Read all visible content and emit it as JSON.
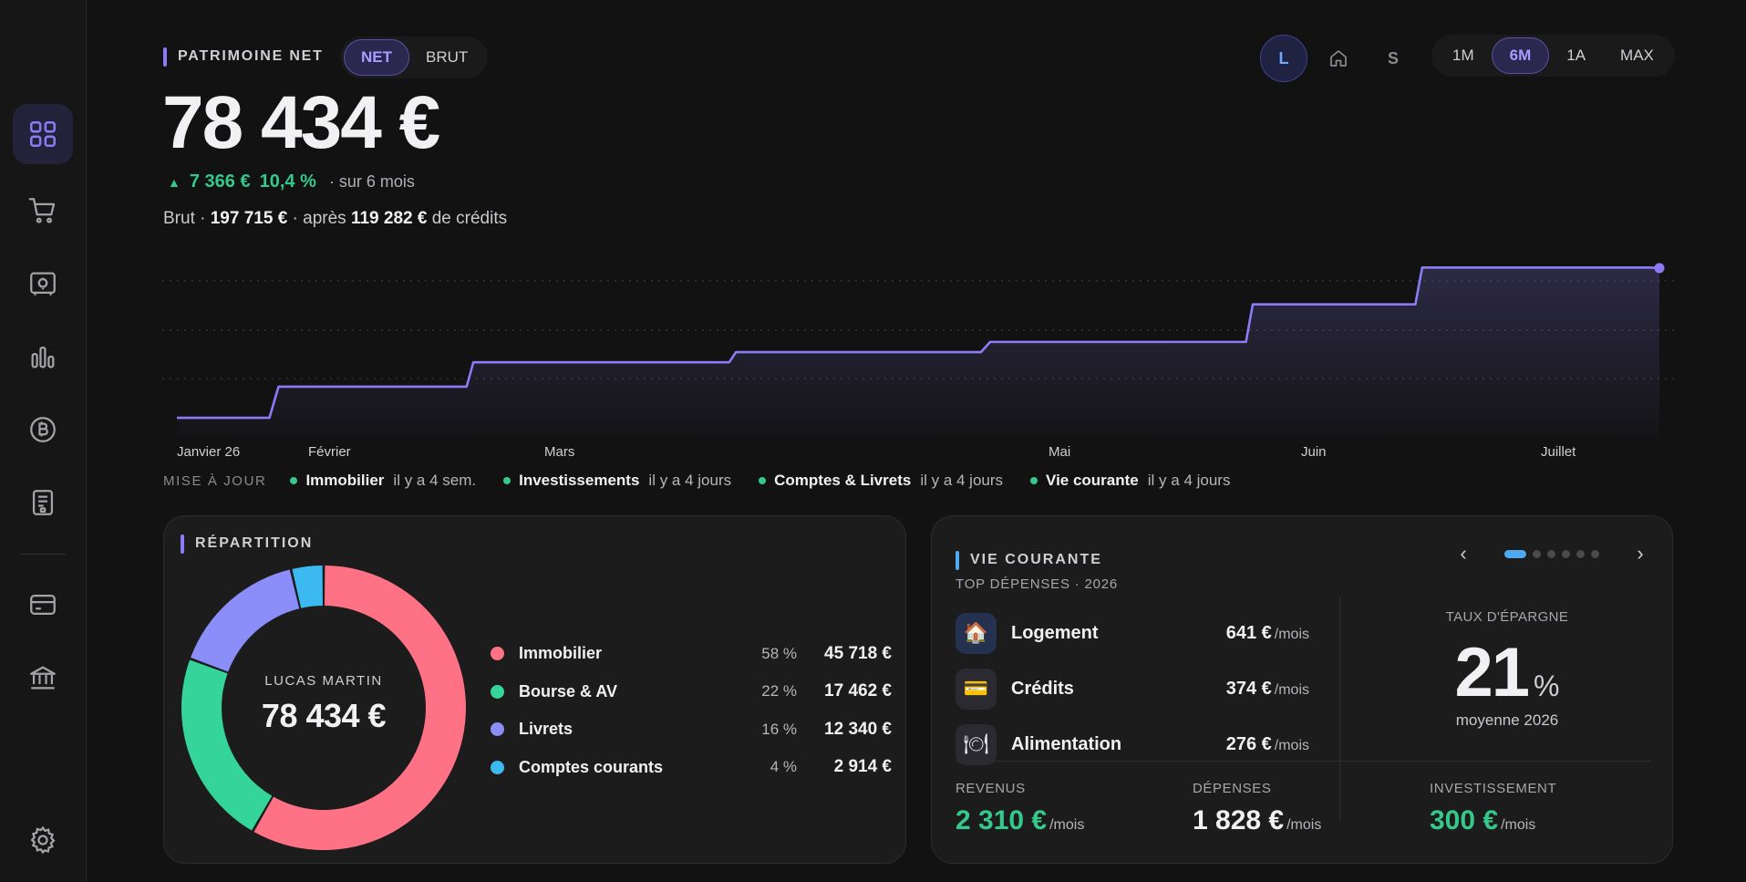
{
  "header": {
    "title": "PATRIMOINE NET",
    "mode_options": [
      "NET",
      "BRUT"
    ],
    "mode_selected": "NET",
    "view_buttons": {
      "l": "L",
      "s": "S"
    },
    "period_options": [
      "1M",
      "6M",
      "1A",
      "MAX"
    ],
    "period_selected": "6M"
  },
  "summary": {
    "value": "78 434 €",
    "delta_abs": "7 366 €",
    "delta_pct": "10,4 %",
    "delta_period": "· sur 6 mois",
    "brut_prefix": "Brut ·",
    "brut_value": "197 715 €",
    "apres_text": "· après",
    "credits_value": "119 282 €",
    "credits_suffix": "de crédits"
  },
  "chart_data": {
    "type": "line",
    "x": [
      "2026-01-26",
      "2026-02-07",
      "2026-02-28",
      "2026-03-02",
      "2026-03-31",
      "2026-04-02",
      "2026-04-26",
      "2026-05-02",
      "2026-05-31",
      "2026-06-02",
      "2026-06-20",
      "2026-06-22",
      "2026-07-12",
      "2026-07-20"
    ],
    "values": [
      71068,
      72600,
      72600,
      73800,
      73800,
      74300,
      74300,
      74800,
      74800,
      76650,
      76650,
      78460,
      78460,
      78434
    ],
    "x_tick_labels": [
      "Janvier 26",
      "Février",
      "Mars",
      "Mai",
      "Juin",
      "Juillet"
    ],
    "line_color": "#8b7cf6",
    "grid": "horizontal-dotted"
  },
  "updates": {
    "label": "MISE À JOUR",
    "items": [
      {
        "name": "Immobilier",
        "time": "il y a 4 sem."
      },
      {
        "name": "Investissements",
        "time": "il y a 4 jours"
      },
      {
        "name": "Comptes & Livrets",
        "time": "il y a 4 jours"
      },
      {
        "name": "Vie courante",
        "time": "il y a 4 jours"
      }
    ],
    "dot_color": "#34c98b"
  },
  "repartition": {
    "title": "RÉPARTITION",
    "owner": "LUCAS MARTIN",
    "total": "78 434 €",
    "items": [
      {
        "name": "Immobilier",
        "pct": "58 %",
        "value": "45 718 €",
        "color": "#ff7185",
        "share": 0.583
      },
      {
        "name": "Bourse & AV",
        "pct": "22 %",
        "value": "17 462 €",
        "color": "#35d49a",
        "share": 0.223
      },
      {
        "name": "Livrets",
        "pct": "16 %",
        "value": "12 340 €",
        "color": "#8b8df8",
        "share": 0.157
      },
      {
        "name": "Comptes courants",
        "pct": "4 %",
        "value": "2 914 €",
        "color": "#3cb9f0",
        "share": 0.037
      }
    ]
  },
  "vie_courante": {
    "title": "VIE COURANTE",
    "subtitle": "TOP DÉPENSES · 2026",
    "pager": {
      "count": 6,
      "active": 0
    },
    "expenses": [
      {
        "icon": "house-icon",
        "glyph": "🏠",
        "name": "Logement",
        "value": "641 €",
        "unit": "/mois"
      },
      {
        "icon": "credit-card-icon",
        "glyph": "💳",
        "name": "Crédits",
        "value": "374 €",
        "unit": "/mois"
      },
      {
        "icon": "plate-icon",
        "glyph": "🍽",
        "name": "Alimentation",
        "value": "276 €",
        "unit": "/mois"
      }
    ],
    "savings": {
      "label": "TAUX D'ÉPARGNE",
      "value": "21",
      "unit": "%",
      "sub": "moyenne 2026"
    },
    "totals": [
      {
        "label": "REVENUS",
        "value": "2 310 €",
        "unit": "/mois",
        "color": "#34c98b"
      },
      {
        "label": "DÉPENSES",
        "value": "1 828 €",
        "unit": "/mois",
        "color": "#f1f1f3"
      },
      {
        "label": "INVESTISSEMENT",
        "value": "300 €",
        "unit": "/mois",
        "color": "#34c98b"
      }
    ]
  },
  "sidebar": {
    "items": [
      {
        "icon": "dashboard-grid-icon",
        "active": true
      },
      {
        "icon": "cart-icon",
        "active": false
      },
      {
        "icon": "safe-icon",
        "active": false
      },
      {
        "icon": "bar-chart-icon",
        "active": false
      },
      {
        "icon": "bitcoin-icon",
        "active": false
      },
      {
        "icon": "receipt-icon",
        "active": false
      },
      {
        "icon": "card-icon",
        "active": false
      },
      {
        "icon": "bank-icon",
        "active": false
      },
      {
        "icon": "gear-icon",
        "active": false
      }
    ]
  },
  "colors": {
    "accent": "#8b7cf6",
    "positive": "#34c98b",
    "blue_accent": "#4ea9f0"
  }
}
